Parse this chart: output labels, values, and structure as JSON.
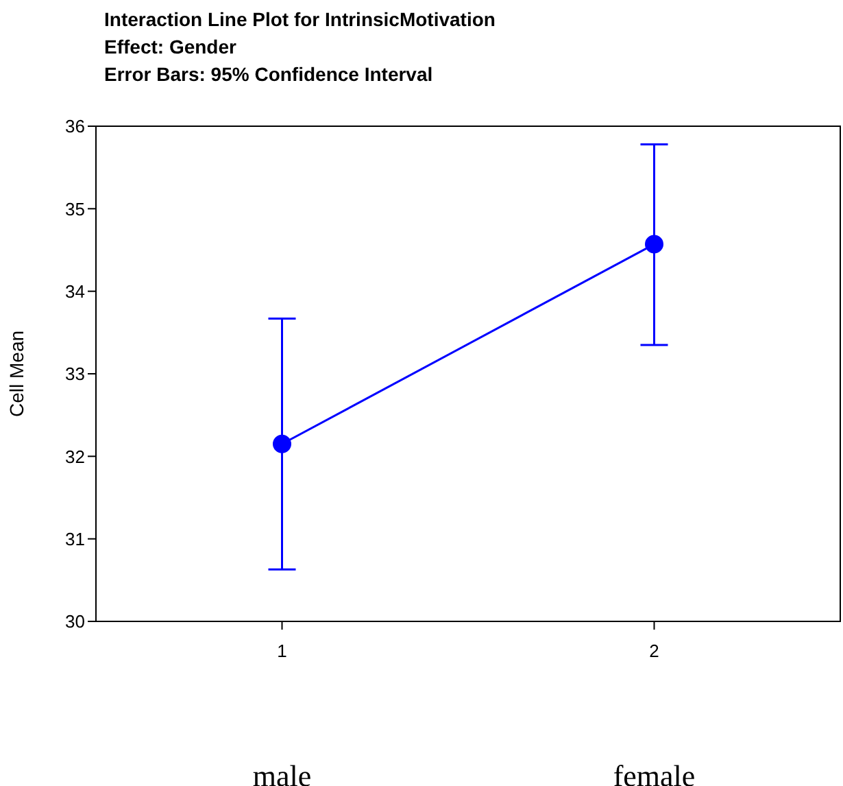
{
  "chart_data": {
    "type": "line",
    "title": "Interaction Line Plot for IntrinsicMotivation",
    "subtitle": "Effect: Gender\nError Bars: 95% Confidence Interval",
    "ylabel": "Cell Mean",
    "categories": [
      "1",
      "2"
    ],
    "series": [
      {
        "color": "#0000ff",
        "values": [
          32.15,
          34.57
        ],
        "errors": [
          [
            30.63,
            33.67
          ],
          [
            33.35,
            35.78
          ]
        ]
      }
    ],
    "ylim": [
      30,
      36
    ],
    "yticks": [
      30,
      31,
      32,
      33,
      34,
      35,
      36
    ],
    "marker": "circle",
    "grid": false,
    "legend": false,
    "annotations": [
      "male",
      "female"
    ]
  }
}
